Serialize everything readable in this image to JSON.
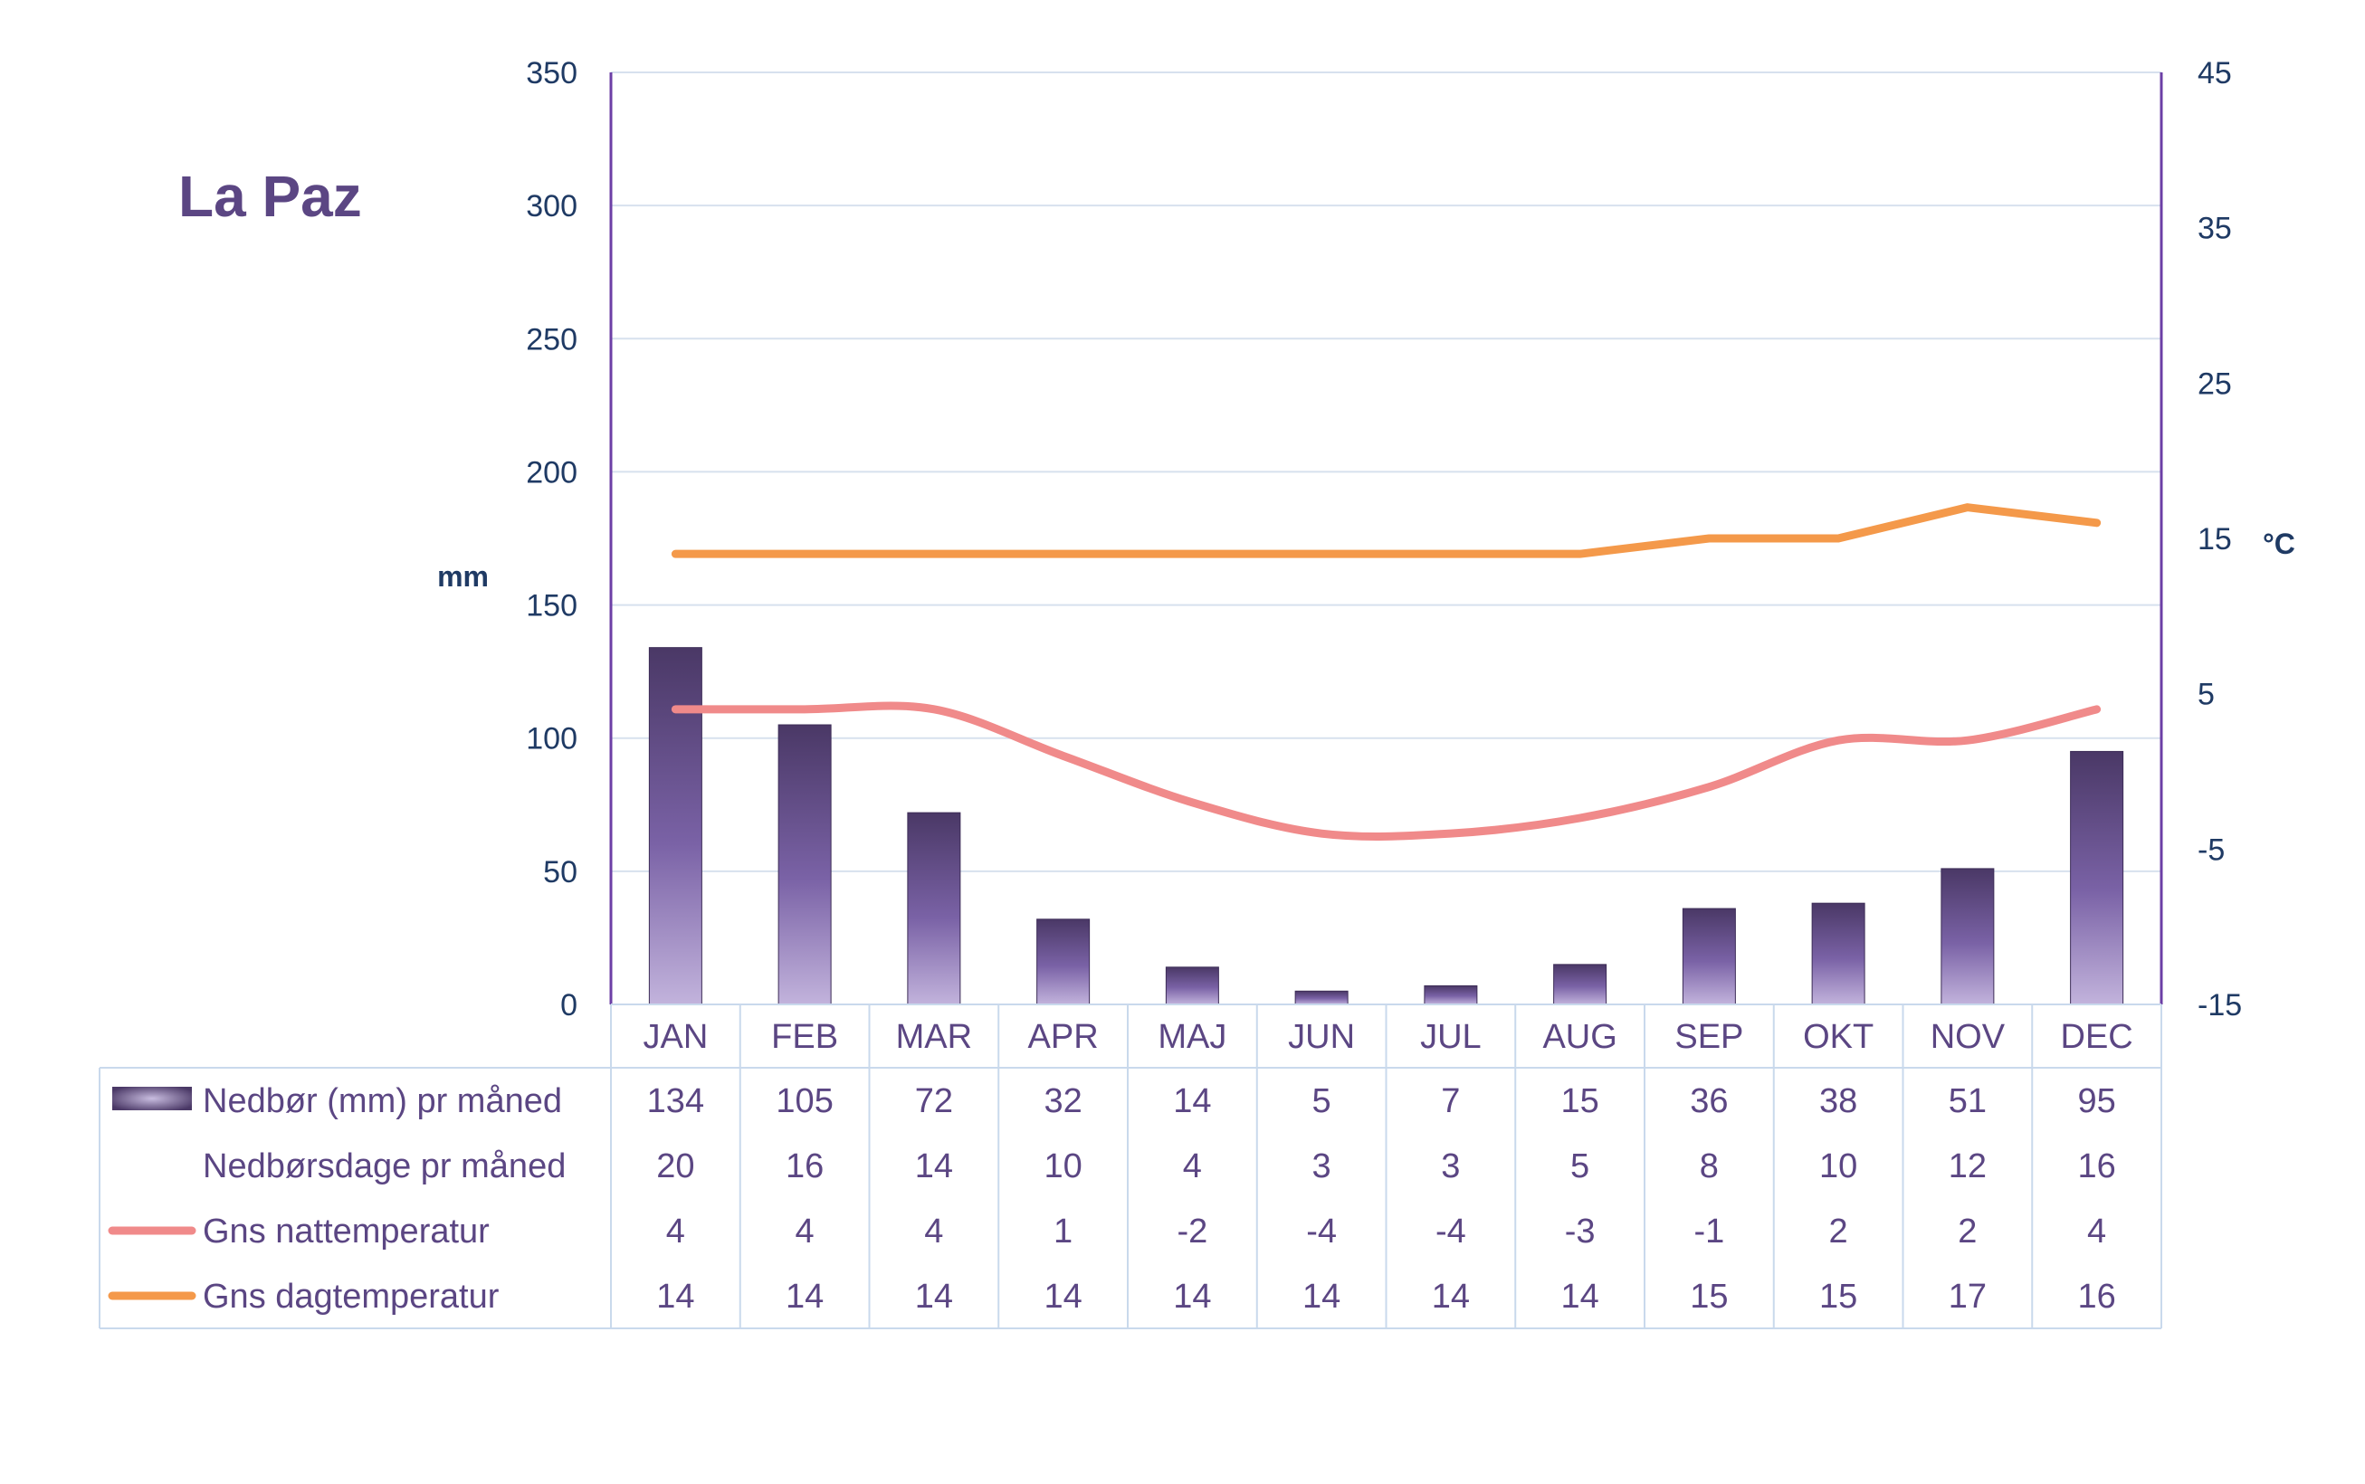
{
  "chart_data": {
    "type": "bar",
    "title": "La Paz",
    "ylabel_left": "mm",
    "ylabel_right": "°C",
    "ylim_left": [
      0,
      350
    ],
    "yticks_left": [
      0,
      50,
      100,
      150,
      200,
      250,
      300,
      350
    ],
    "ylim_right": [
      -15,
      45
    ],
    "yticks_right": [
      -15,
      -5,
      5,
      15,
      25,
      35,
      45
    ],
    "grid": true,
    "legend": "table-below",
    "categories": [
      "JAN",
      "FEB",
      "MAR",
      "APR",
      "MAJ",
      "JUN",
      "JUL",
      "AUG",
      "SEP",
      "OKT",
      "NOV",
      "DEC"
    ],
    "series": [
      {
        "name": "Nedbør (mm) pr måned",
        "type": "bar",
        "axis": "left",
        "color": "#5b4683",
        "values": [
          134,
          105,
          72,
          32,
          14,
          5,
          7,
          15,
          36,
          38,
          51,
          95
        ]
      },
      {
        "name": "Nedbørsdage pr måned",
        "type": "table",
        "values": [
          20,
          16,
          14,
          10,
          4,
          3,
          3,
          5,
          8,
          10,
          12,
          16
        ]
      },
      {
        "name": "Gns nattemperatur",
        "type": "line",
        "axis": "right",
        "color": "#f08a8a",
        "values": [
          4,
          4,
          4,
          1,
          -2,
          -4,
          -4,
          -3,
          -1,
          2,
          2,
          4
        ]
      },
      {
        "name": "Gns dagtemperatur",
        "type": "line",
        "axis": "right",
        "color": "#f4994a",
        "values": [
          14,
          14,
          14,
          14,
          14,
          14,
          14,
          14,
          15,
          15,
          17,
          16
        ]
      }
    ]
  },
  "colors": {
    "bar_dark": "#4a3866",
    "bar_mid": "#7a62a6",
    "bar_light": "#c2b3dc",
    "axis_line": "#6c3fa6",
    "grid": "#d7e1ee",
    "table_border": "#c9d9ec",
    "tick_text": "#1f3a64",
    "table_text": "#5b4683"
  }
}
